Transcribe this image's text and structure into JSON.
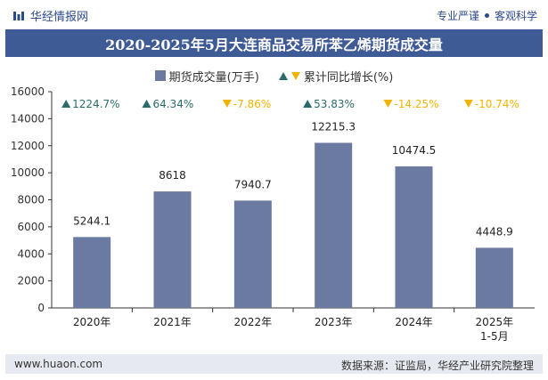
{
  "header": {
    "brand": "华经情报网",
    "tag1": "专业严谨",
    "tag2": "客观科学"
  },
  "title": "2020-2025年5月大连商品交易所苯乙烯期货成交量",
  "legend": {
    "bar_label": "期货成交量(万手)",
    "growth_label": "累计同比增长(%)"
  },
  "chart_data": {
    "type": "bar",
    "categories": [
      "2020年",
      "2021年",
      "2022年",
      "2023年",
      "2024年",
      "2025年\n1-5月"
    ],
    "category_lines": [
      [
        "2020年"
      ],
      [
        "2021年"
      ],
      [
        "2022年"
      ],
      [
        "2023年"
      ],
      [
        "2024年"
      ],
      [
        "2025年",
        "1-5月"
      ]
    ],
    "series": [
      {
        "name": "期货成交量(万手)",
        "values": [
          5244.1,
          8618,
          7940.7,
          12215.3,
          10474.5,
          4448.9
        ]
      }
    ],
    "value_labels": [
      "5244.1",
      "8618",
      "7940.7",
      "12215.3",
      "10474.5",
      "4448.9"
    ],
    "growth": [
      {
        "text": "1224.7%",
        "direction": "up"
      },
      {
        "text": "64.34%",
        "direction": "up"
      },
      {
        "text": "-7.86%",
        "direction": "down"
      },
      {
        "text": "53.83%",
        "direction": "up"
      },
      {
        "text": "-14.25%",
        "direction": "down"
      },
      {
        "text": "-10.74%",
        "direction": "down"
      }
    ],
    "yticks": [
      "0",
      "2000",
      "4000",
      "6000",
      "8000",
      "10000",
      "12000",
      "14000",
      "16000"
    ],
    "ylim": [
      0,
      16000
    ],
    "grid": false,
    "legend_position": "top-center",
    "colors": {
      "bar": "#6b7aa1",
      "up": "#2a6b6b",
      "down": "#f0b400",
      "axis": "#333333"
    }
  },
  "footer": {
    "site": "www.huaon.com",
    "source": "数据来源：证监局，华经产业研究院整理"
  }
}
